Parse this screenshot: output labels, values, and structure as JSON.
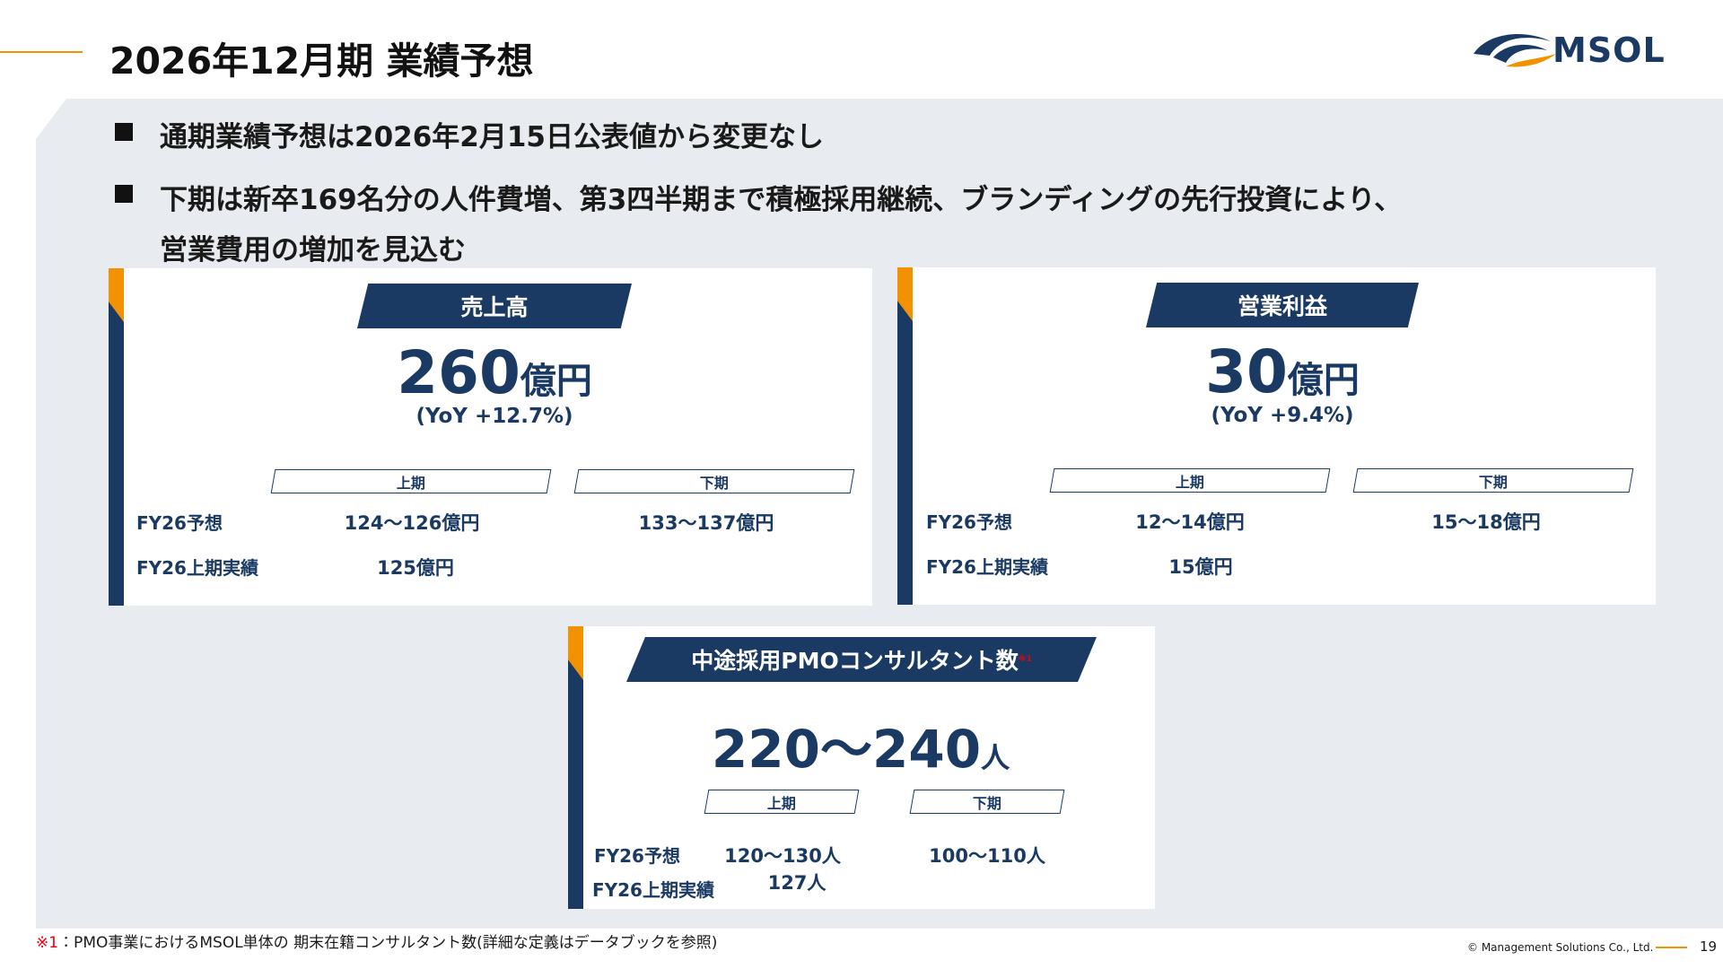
{
  "header": {
    "title": "2026年12月期 業績予想"
  },
  "logo": {
    "text": "MSOL"
  },
  "bullets": [
    "通期業績予想は2026年2月15日公表値から変更なし",
    [
      "下期は新卒169名分の人件費増、第3四半期まで積極採用継続、ブランディングの先行投資により、",
      "営業費用の増加を見込む"
    ]
  ],
  "cards": [
    {
      "label": "売上高",
      "value": "260",
      "unit": "億円",
      "yoy": "(YoY +12.7%)",
      "columns": [
        "上期",
        "下期"
      ],
      "rows": [
        {
          "label": "FY26予想",
          "values": [
            "124～126億円",
            "133～137億円"
          ]
        },
        {
          "label": "FY26上期実績",
          "values": [
            "125億円"
          ]
        }
      ]
    },
    {
      "label": "営業利益",
      "value": "30",
      "unit": "億円",
      "yoy": "(YoY +9.4%)",
      "columns": [
        "上期",
        "下期"
      ],
      "rows": [
        {
          "label": "FY26予想",
          "values": [
            "12～14億円",
            "15～18億円"
          ]
        },
        {
          "label": "FY26上期実績",
          "values": [
            "15億円"
          ]
        }
      ]
    },
    {
      "label": "中途採用PMOコンサルタント数",
      "note": "※1",
      "value": "220～240",
      "unit": "人",
      "columns": [
        "上期",
        "下期"
      ],
      "rows": [
        {
          "label": "FY26予想",
          "values": [
            "120～130人",
            "100～110人"
          ]
        },
        {
          "label": "FY26上期実績",
          "values": [
            "127人"
          ]
        }
      ]
    }
  ],
  "footnote": {
    "mark": "※1",
    "text": "：PMO事業におけるMSOL単体の 期末在籍コンサルタント数(詳細な定義はデータブックを参照)"
  },
  "footer": {
    "copyright": "© Management Solutions Co., Ltd.",
    "page": "19"
  }
}
